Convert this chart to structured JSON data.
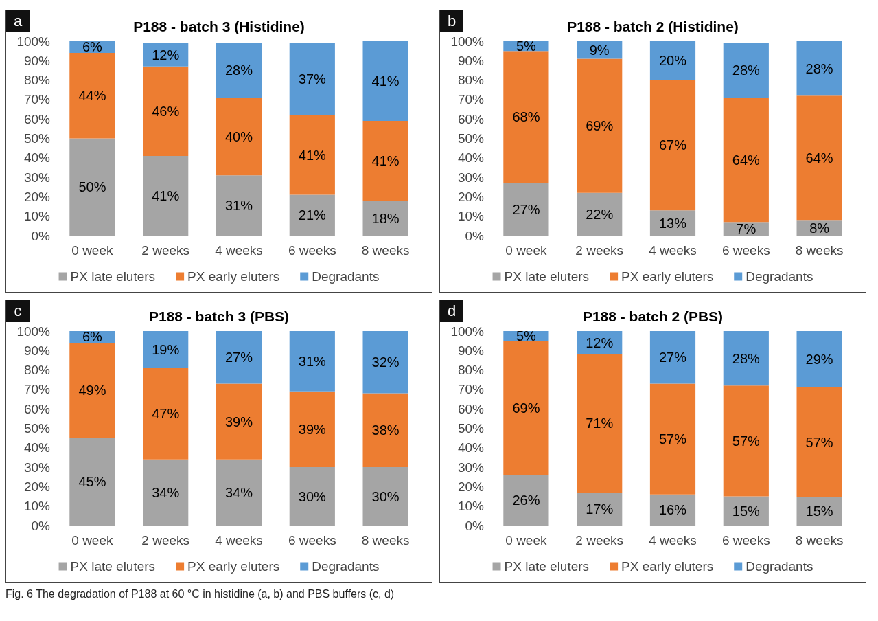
{
  "chart_data": [
    {
      "type": "bar",
      "stacked": true,
      "title": "P188 - batch 3 (Histidine)",
      "annotations": [
        "a"
      ],
      "categories": [
        "0 week",
        "2 weeks",
        "4 weeks",
        "6 weeks",
        "8 weeks"
      ],
      "ylim": [
        0,
        100
      ],
      "yticks": [
        {
          "value": 0,
          "label": "0%"
        },
        {
          "value": 10,
          "label": "10%"
        },
        {
          "value": 20,
          "label": "20%"
        },
        {
          "value": 30,
          "label": "30%"
        },
        {
          "value": 40,
          "label": "40%"
        },
        {
          "value": 50,
          "label": "50%"
        },
        {
          "value": 60,
          "label": "60%"
        },
        {
          "value": 70,
          "label": "70%"
        },
        {
          "value": 80,
          "label": "80%"
        },
        {
          "value": 90,
          "label": "90%"
        },
        {
          "value": 100,
          "label": "100%"
        }
      ],
      "legend": "bottom",
      "series": [
        {
          "name": "PX late eluters",
          "color": "#a5a5a5",
          "values": [
            50,
            41,
            31,
            21,
            18
          ],
          "value_labels": [
            "50%",
            "41%",
            "31%",
            "21%",
            "18%"
          ]
        },
        {
          "name": "PX early eluters",
          "color": "#ed7d31",
          "values": [
            44,
            46,
            40,
            41,
            41
          ],
          "value_labels": [
            "44%",
            "46%",
            "40%",
            "41%",
            "41%"
          ]
        },
        {
          "name": "Degradants",
          "color": "#5b9bd5",
          "values": [
            6,
            12,
            28,
            37,
            41
          ],
          "value_labels": [
            "6%",
            "12%",
            "28%",
            "37%",
            "41%"
          ]
        }
      ]
    },
    {
      "type": "bar",
      "stacked": true,
      "title": "P188 - batch 2 (Histidine)",
      "annotations": [
        "b"
      ],
      "categories": [
        "0 week",
        "2 weeks",
        "4 weeks",
        "6 weeks",
        "8 weeks"
      ],
      "ylim": [
        0,
        100
      ],
      "yticks": [
        {
          "value": 0,
          "label": "0%"
        },
        {
          "value": 10,
          "label": "10%"
        },
        {
          "value": 20,
          "label": "20%"
        },
        {
          "value": 30,
          "label": "30%"
        },
        {
          "value": 40,
          "label": "40%"
        },
        {
          "value": 50,
          "label": "50%"
        },
        {
          "value": 60,
          "label": "60%"
        },
        {
          "value": 70,
          "label": "70%"
        },
        {
          "value": 80,
          "label": "80%"
        },
        {
          "value": 90,
          "label": "90%"
        },
        {
          "value": 100,
          "label": "100%"
        }
      ],
      "legend": "bottom",
      "series": [
        {
          "name": "PX late eluters",
          "color": "#a5a5a5",
          "values": [
            27,
            22,
            13,
            7,
            8
          ],
          "value_labels": [
            "27%",
            "22%",
            "13%",
            "7%",
            "8%"
          ]
        },
        {
          "name": "PX early eluters",
          "color": "#ed7d31",
          "values": [
            68,
            69,
            67,
            64,
            64
          ],
          "value_labels": [
            "68%",
            "69%",
            "67%",
            "64%",
            "64%"
          ]
        },
        {
          "name": "Degradants",
          "color": "#5b9bd5",
          "values": [
            5,
            9,
            20,
            28,
            28
          ],
          "value_labels": [
            "5%",
            "9%",
            "20%",
            "28%",
            "28%"
          ]
        }
      ]
    },
    {
      "type": "bar",
      "stacked": true,
      "title": "P188 - batch 3 (PBS)",
      "annotations": [
        "c"
      ],
      "categories": [
        "0 week",
        "2 weeks",
        "4 weeks",
        "6 weeks",
        "8 weeks"
      ],
      "ylim": [
        0,
        100
      ],
      "yticks": [
        {
          "value": 0,
          "label": "0%"
        },
        {
          "value": 10,
          "label": "10%"
        },
        {
          "value": 20,
          "label": "20%"
        },
        {
          "value": 30,
          "label": "30%"
        },
        {
          "value": 40,
          "label": "40%"
        },
        {
          "value": 50,
          "label": "50%"
        },
        {
          "value": 60,
          "label": "60%"
        },
        {
          "value": 70,
          "label": "70%"
        },
        {
          "value": 80,
          "label": "80%"
        },
        {
          "value": 90,
          "label": "90%"
        },
        {
          "value": 100,
          "label": "100%"
        }
      ],
      "legend": "bottom",
      "series": [
        {
          "name": "PX late eluters",
          "color": "#a5a5a5",
          "values": [
            45,
            34,
            34,
            30,
            30
          ],
          "value_labels": [
            "45%",
            "34%",
            "34%",
            "30%",
            "30%"
          ]
        },
        {
          "name": "PX early eluters",
          "color": "#ed7d31",
          "values": [
            49,
            47,
            39,
            39,
            38
          ],
          "value_labels": [
            "49%",
            "47%",
            "39%",
            "39%",
            "38%"
          ]
        },
        {
          "name": "Degradants",
          "color": "#5b9bd5",
          "values": [
            6,
            19,
            27,
            31,
            32
          ],
          "value_labels": [
            "6%",
            "19%",
            "27%",
            "31%",
            "32%"
          ]
        }
      ]
    },
    {
      "type": "bar",
      "stacked": true,
      "title": "P188 - batch 2 (PBS)",
      "annotations": [
        "d",
        "Fig. 6  The degradation of P188 at 60 °C in histidine (a, b) and PBS buffers (c, d)"
      ],
      "categories": [
        "0 week",
        "2 weeks",
        "4 weeks",
        "6 weeks",
        "8 weeks"
      ],
      "ylim": [
        0,
        100
      ],
      "yticks": [
        {
          "value": 0,
          "label": "0%"
        },
        {
          "value": 10,
          "label": "10%"
        },
        {
          "value": 20,
          "label": "20%"
        },
        {
          "value": 30,
          "label": "30%"
        },
        {
          "value": 40,
          "label": "40%"
        },
        {
          "value": 50,
          "label": "50%"
        },
        {
          "value": 60,
          "label": "60%"
        },
        {
          "value": 70,
          "label": "70%"
        },
        {
          "value": 80,
          "label": "80%"
        },
        {
          "value": 90,
          "label": "90%"
        },
        {
          "value": 100,
          "label": "100%"
        }
      ],
      "legend": "bottom",
      "series": [
        {
          "name": "PX late eluters",
          "color": "#a5a5a5",
          "values": [
            26,
            17,
            16,
            15,
            14.5
          ],
          "value_labels": [
            "26%",
            "17%",
            "16%",
            "15%",
            "15%"
          ]
        },
        {
          "name": "PX early eluters",
          "color": "#ed7d31",
          "values": [
            69,
            71,
            57,
            57,
            56.5
          ],
          "value_labels": [
            "69%",
            "71%",
            "57%",
            "57%",
            "57%"
          ]
        },
        {
          "name": "Degradants",
          "color": "#5b9bd5",
          "values": [
            5,
            12,
            27,
            28,
            29
          ],
          "value_labels": [
            "5%",
            "12%",
            "27%",
            "28%",
            "29%"
          ]
        }
      ]
    }
  ]
}
